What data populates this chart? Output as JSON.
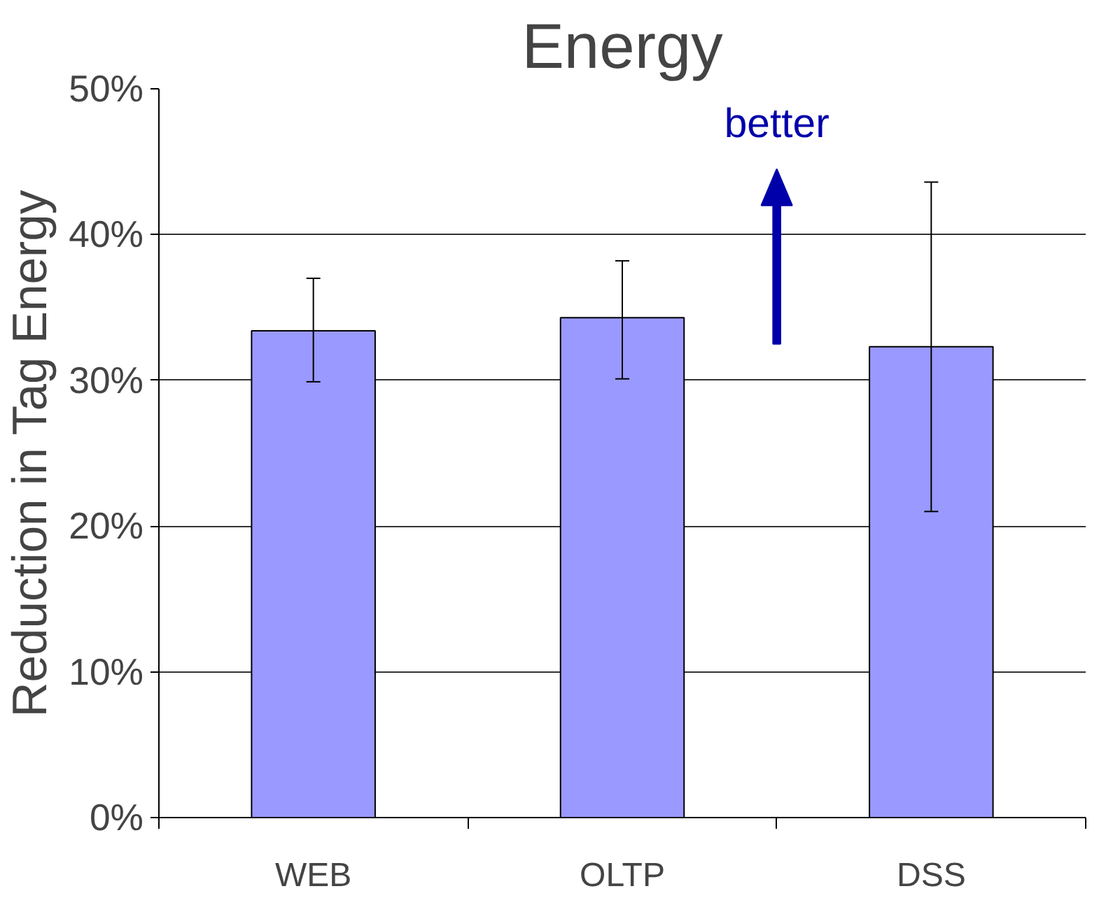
{
  "chart_data": {
    "type": "bar",
    "title": "Energy",
    "ylabel": "Reduction in Tag Energy",
    "categories": [
      "WEB",
      "OLTP",
      "DSS"
    ],
    "values": [
      33.4,
      34.3,
      32.3
    ],
    "errors": [
      [
        29.9,
        37.0
      ],
      [
        30.1,
        38.2
      ],
      [
        21.0,
        43.6
      ]
    ],
    "color": "#9999ff",
    "ylim": [
      0,
      50
    ],
    "yticks": [
      {
        "value": 0,
        "label": "0%"
      },
      {
        "value": 10,
        "label": "10%"
      },
      {
        "value": 20,
        "label": "20%"
      },
      {
        "value": 30,
        "label": "30%"
      },
      {
        "value": 40,
        "label": "40%"
      },
      {
        "value": 50,
        "label": "50%"
      }
    ],
    "grid": "y",
    "annotations": [
      "better"
    ]
  }
}
